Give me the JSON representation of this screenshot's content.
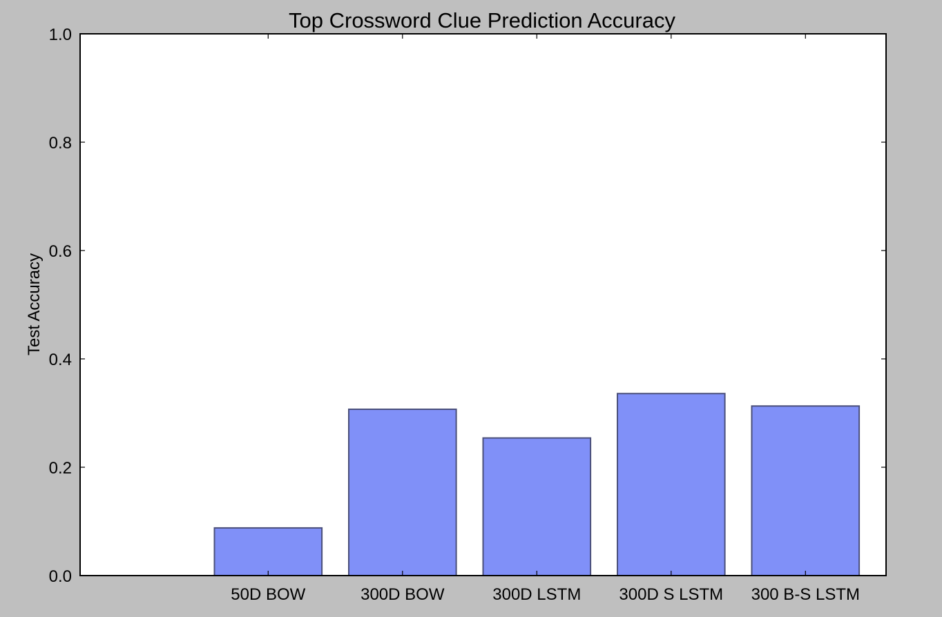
{
  "colors": {
    "figure_background": "#bfbfbf",
    "plot_background": "#ffffff",
    "bar_fill": "#8090f8",
    "bar_edge": "#4a4f7a"
  },
  "chart_data": {
    "type": "bar",
    "title": "Top Crossword Clue Prediction Accuracy",
    "xlabel": "",
    "ylabel": "Test Accuracy",
    "categories": [
      "50D BOW",
      "300D BOW",
      "300D LSTM",
      "300D S LSTM",
      "300 B-S LSTM"
    ],
    "values": [
      0.088,
      0.307,
      0.254,
      0.336,
      0.313
    ],
    "ylim": [
      0.0,
      1.0
    ],
    "yticks": [
      0.0,
      0.2,
      0.4,
      0.6,
      0.8,
      1.0
    ],
    "ytick_labels": [
      "0.0",
      "0.2",
      "0.4",
      "0.6",
      "0.8",
      "1.0"
    ],
    "xlim": [
      -0.4,
      5.6
    ],
    "bar_width": 0.8,
    "grid": false,
    "legend": "none"
  }
}
